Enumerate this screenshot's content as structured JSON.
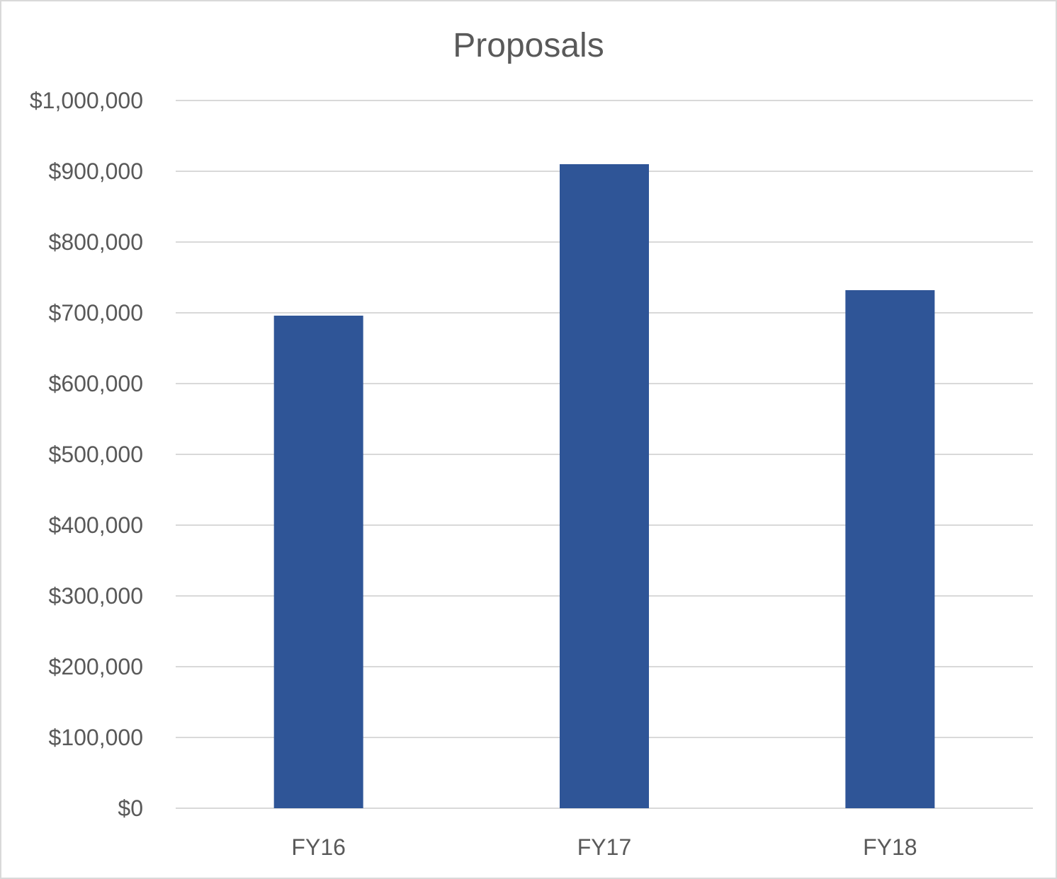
{
  "chart_data": {
    "type": "bar",
    "title": "Proposals",
    "xlabel": "",
    "ylabel": "",
    "categories": [
      "FY16",
      "FY17",
      "FY18"
    ],
    "values": [
      696000,
      910000,
      732000
    ],
    "ylim": [
      0,
      1000000
    ],
    "yticks": [
      0,
      100000,
      200000,
      300000,
      400000,
      500000,
      600000,
      700000,
      800000,
      900000,
      1000000
    ],
    "ytick_labels": [
      "$0",
      "$100,000",
      "$200,000",
      "$300,000",
      "$400,000",
      "$500,000",
      "$600,000",
      "$700,000",
      "$800,000",
      "$900,000",
      "$1,000,000"
    ],
    "bar_color": "#2f5597",
    "grid": true,
    "legend": "none"
  }
}
